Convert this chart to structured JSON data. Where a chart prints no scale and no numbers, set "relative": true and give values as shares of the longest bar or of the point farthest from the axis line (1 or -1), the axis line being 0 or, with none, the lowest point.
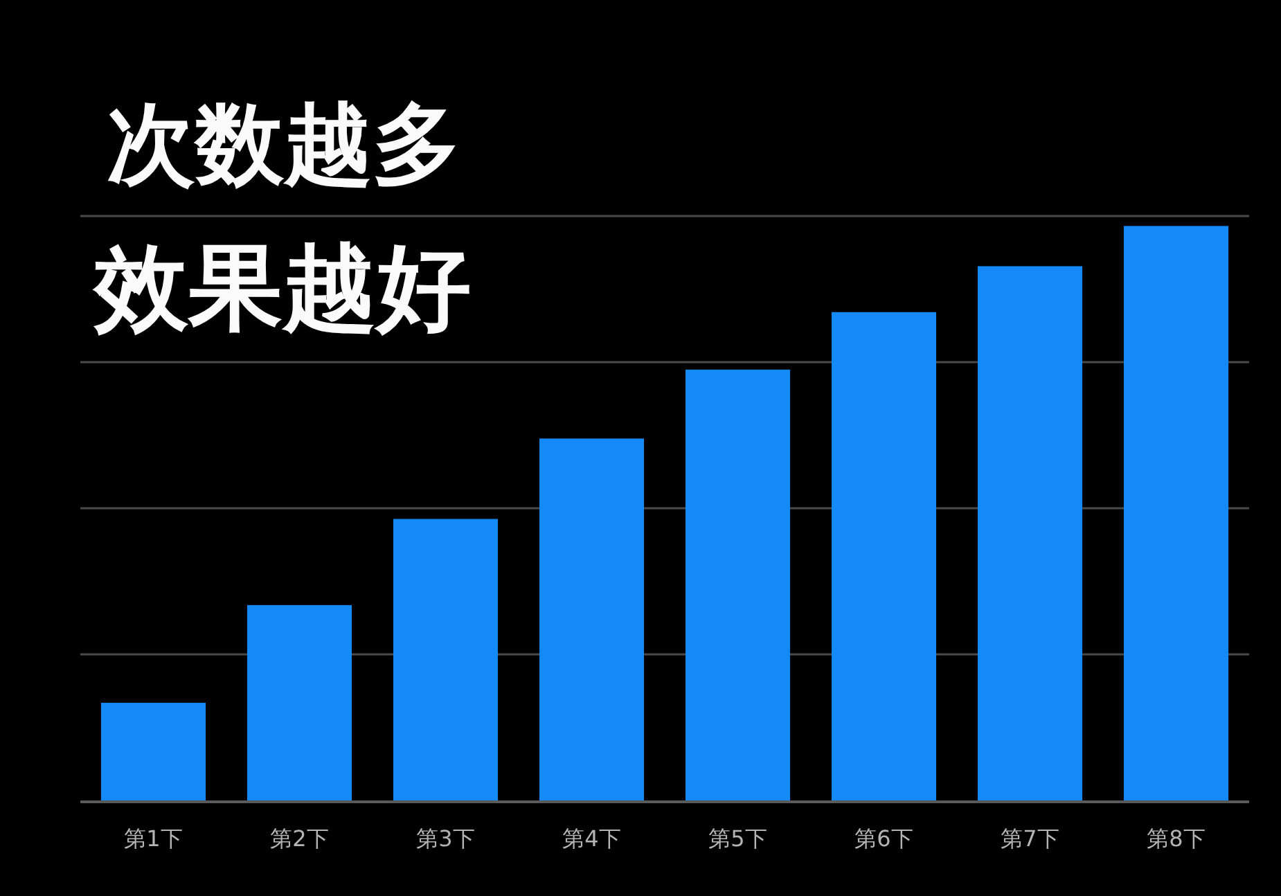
{
  "chart_data": {
    "type": "bar",
    "title": "次数越多",
    "subtitle": "效果越好",
    "categories": [
      "第1下",
      "第2下",
      "第3下",
      "第4下",
      "第5下",
      "第6下",
      "第7下",
      "第8下"
    ],
    "values": [
      0.17,
      0.34,
      0.49,
      0.63,
      0.75,
      0.85,
      0.93,
      1
    ],
    "color": "#138af8",
    "relative": true,
    "grid": "y"
  }
}
